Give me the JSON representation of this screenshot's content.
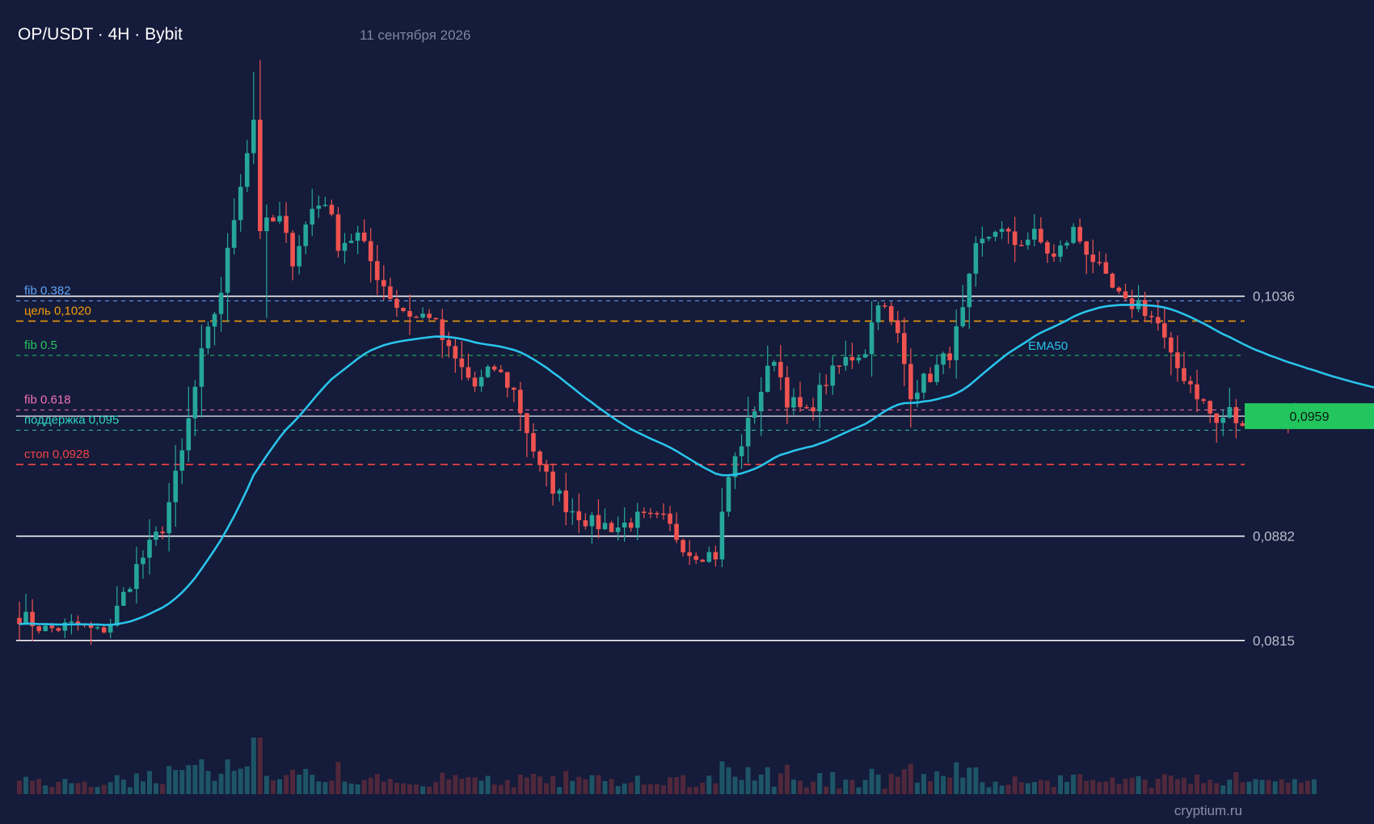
{
  "header": {
    "title": "OP/USDT · 4H · Bybit",
    "date": "11 сентября 2026"
  },
  "watermark": "cryptium.ru",
  "colors": {
    "background": "#151b3a",
    "bull": "#26a69a",
    "bear": "#ef5350",
    "ema": "#29c3ea",
    "price_tag": "#22c55e",
    "target": "#f59e0b",
    "stop": "#ef4444",
    "support": "#2dd4bf",
    "fib_0382": "#60a5fa",
    "fib_05": "#22c55e",
    "fib_0618": "#f472b6"
  },
  "chart_data": {
    "type": "candlestick",
    "symbol": "OP/USDT",
    "timeframe": "4H",
    "exchange": "Bybit",
    "y_range": [
      0.0775,
      0.1195
    ],
    "candle_count": 200,
    "current_price": {
      "value": 0.0959,
      "label": "0,0959"
    },
    "price_axis": [
      {
        "value": 0.1036,
        "label": "0,1036"
      },
      {
        "value": 0.0882,
        "label": "0,0882"
      },
      {
        "value": 0.0815,
        "label": "0,0815"
      }
    ],
    "levels": [
      {
        "id": "fib382",
        "value": 0.1033,
        "label": "fib 0.382",
        "style": "dashed",
        "color_key": "fib_0382"
      },
      {
        "id": "target",
        "value": 0.102,
        "label": "цель 0,1020",
        "style": "dashed",
        "color_key": "target"
      },
      {
        "id": "fib5",
        "value": 0.0998,
        "label": "fib 0.5",
        "style": "dashed",
        "color_key": "fib_05"
      },
      {
        "id": "fib618",
        "value": 0.0963,
        "label": "fib 0.618",
        "style": "dashed",
        "color_key": "fib_0618"
      },
      {
        "id": "support",
        "value": 0.095,
        "label": "поддержка 0,095",
        "style": "dashed",
        "color_key": "support"
      },
      {
        "id": "stop",
        "value": 0.0928,
        "label": "стоп 0,0928",
        "style": "dashed",
        "color_key": "stop"
      }
    ],
    "indicator": {
      "name": "EMA50",
      "label": "EMA50"
    },
    "price_path": [
      [
        0,
        0.0831
      ],
      [
        4,
        0.0822
      ],
      [
        9,
        0.0825
      ],
      [
        12,
        0.082
      ],
      [
        14,
        0.0826
      ],
      [
        18,
        0.0862
      ],
      [
        22,
        0.0888
      ],
      [
        25,
        0.0935
      ],
      [
        28,
        0.0998
      ],
      [
        31,
        0.104
      ],
      [
        34,
        0.111
      ],
      [
        36,
        0.115
      ],
      [
        37,
        0.108
      ],
      [
        40,
        0.1085
      ],
      [
        42,
        0.106
      ],
      [
        45,
        0.1092
      ],
      [
        47,
        0.1098
      ],
      [
        49,
        0.107
      ],
      [
        52,
        0.1075
      ],
      [
        55,
        0.105
      ],
      [
        58,
        0.103
      ],
      [
        61,
        0.1022
      ],
      [
        63,
        0.1025
      ],
      [
        66,
        0.1
      ],
      [
        70,
        0.0978
      ],
      [
        73,
        0.099
      ],
      [
        76,
        0.0975
      ],
      [
        80,
        0.0925
      ],
      [
        84,
        0.0902
      ],
      [
        88,
        0.089
      ],
      [
        92,
        0.0888
      ],
      [
        95,
        0.0893
      ],
      [
        99,
        0.0892
      ],
      [
        103,
        0.0872
      ],
      [
        107,
        0.087
      ],
      [
        109,
        0.092
      ],
      [
        113,
        0.0965
      ],
      [
        116,
        0.0998
      ],
      [
        118,
        0.097
      ],
      [
        121,
        0.096
      ],
      [
        124,
        0.0982
      ],
      [
        127,
        0.0995
      ],
      [
        130,
        0.1002
      ],
      [
        132,
        0.1035
      ],
      [
        135,
        0.101
      ],
      [
        137,
        0.0975
      ],
      [
        140,
        0.0985
      ],
      [
        143,
        0.1
      ],
      [
        145,
        0.1025
      ],
      [
        147,
        0.1065
      ],
      [
        150,
        0.108
      ],
      [
        153,
        0.107
      ],
      [
        156,
        0.1075
      ],
      [
        159,
        0.106
      ],
      [
        162,
        0.1078
      ],
      [
        165,
        0.106
      ],
      [
        167,
        0.1045
      ],
      [
        170,
        0.103
      ],
      [
        172,
        0.1032
      ],
      [
        175,
        0.1018
      ],
      [
        177,
        0.0995
      ],
      [
        180,
        0.098
      ],
      [
        182,
        0.0967
      ],
      [
        184,
        0.0954
      ],
      [
        186,
        0.0962
      ],
      [
        188,
        0.095
      ],
      [
        189,
        0.0959
      ]
    ],
    "grid": false
  }
}
